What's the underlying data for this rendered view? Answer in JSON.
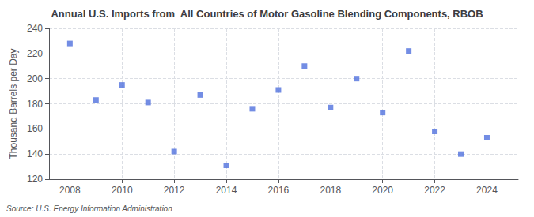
{
  "chart_data": {
    "type": "scatter",
    "title": "Annual U.S. Imports from  All Countries of Motor Gasoline Blending Components, RBOB",
    "ylabel": "Thousand Barrels per Day",
    "source": "Source: U.S. Energy Information Administration",
    "x": [
      2008,
      2009,
      2010,
      2011,
      2012,
      2013,
      2014,
      2015,
      2016,
      2017,
      2018,
      2019,
      2020,
      2021,
      2022,
      2023,
      2024
    ],
    "values": [
      228,
      183,
      195,
      181,
      142,
      187,
      131,
      176,
      191,
      210,
      177,
      200,
      173,
      222,
      158,
      140,
      153
    ],
    "marker": "square",
    "xlim": [
      2007.2,
      2025.2
    ],
    "xticks": [
      2008,
      2010,
      2012,
      2014,
      2016,
      2018,
      2020,
      2022,
      2024
    ],
    "ylim": [
      120,
      240
    ],
    "yticks": [
      120,
      140,
      160,
      180,
      200,
      220,
      240
    ],
    "grid": true
  }
}
